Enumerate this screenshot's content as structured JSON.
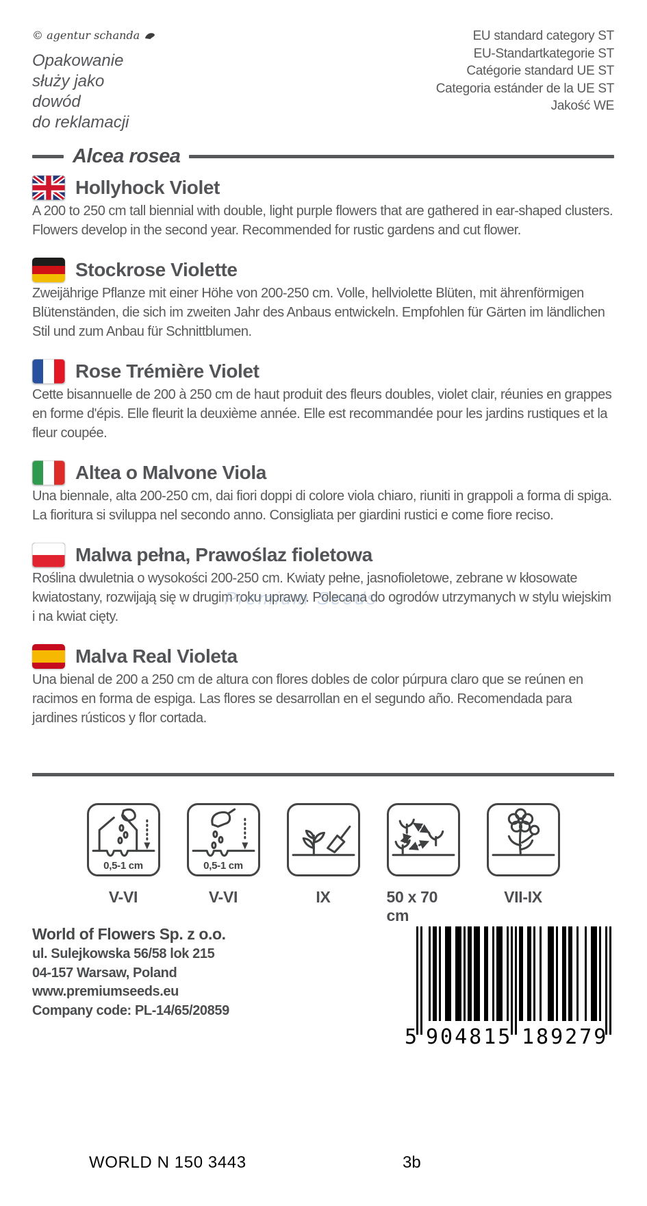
{
  "top": {
    "copyright": "© agentur schanda",
    "packaging_note_lines": [
      "Opakowanie",
      "służy jako",
      "dowód",
      "do reklamacji"
    ],
    "category_lines": [
      "EU standard category ST",
      "EU-Standartkategorie ST",
      "Catégorie standard UE ST",
      "Categoria estánder de la UE ST",
      "Jakość WE"
    ]
  },
  "species": "Alcea rosea",
  "sections": [
    {
      "lang": "en",
      "title": "Hollyhock Violet",
      "body": "A 200 to 250 cm tall biennial with double, light purple flowers that are gathered in ear-shaped clusters. Flowers develop in the second year. Recommended for rustic gardens and cut flower."
    },
    {
      "lang": "de",
      "title": "Stockrose Violette",
      "body": "Zweijährige Pflanze mit einer Höhe von 200-250 cm. Volle, hellviolette Blüten, mit ährenförmigen Blütenständen, die sich im zweiten Jahr des Anbaus entwickeln. Empfohlen für Gärten im ländlichen Stil und zum Anbau für Schnittblumen."
    },
    {
      "lang": "fr",
      "title": "Rose Trémière Violet",
      "body": "Cette bisannuelle de 200 à 250 cm de haut produit des fleurs doubles, violet clair, réunies en grappes en forme d'épis. Elle fleurit la deuxième année. Elle est recommandée pour les jardins rustiques et la fleur coupée."
    },
    {
      "lang": "it",
      "title": "Altea o Malvone Viola",
      "body": "Una biennale, alta 200-250 cm, dai fiori doppi di colore viola chiaro, riuniti in grappoli a forma di spiga. La fioritura si sviluppa nel secondo anno. Consigliata per giardini rustici e come fiore reciso."
    },
    {
      "lang": "pl",
      "title": "Malwa pełna, Prawoślaz fioletowa",
      "body": "Roślina dwuletnia o wysokości 200-250 cm. Kwiaty pełne, jasnofioletowe, zebrane w kłosowate kwiatostany, rozwijają się w drugim roku uprawy. Polecana do ogrodów utrzymanych w stylu wiejskim i na kwiat cięty."
    },
    {
      "lang": "es",
      "title": "Malva Real Violeta",
      "body": "Una bienal de 200 a 250 cm de altura con flores dobles de color púrpura claro que se reúnen en racimos en forma de espiga. Las flores se desarrollan en el segundo año. Recomendada para jardines rústicos y flor cortada."
    }
  ],
  "watermark": "Premium Seeds",
  "icons": [
    {
      "name": "sow-under-cover",
      "depth_label": "0,5-1 cm",
      "caption": "V-VI"
    },
    {
      "name": "sow-direct",
      "depth_label": "0,5-1 cm",
      "caption": "V-VI"
    },
    {
      "name": "transplant",
      "caption": "IX"
    },
    {
      "name": "plant-spacing",
      "caption": "50 x 70 cm"
    },
    {
      "name": "flowering-period",
      "caption": "VII-IX"
    }
  ],
  "address": {
    "company": "World of Flowers Sp. z o.o.",
    "street": "ul. Sulejkowska 56/58 lok 215",
    "city": "04-157 Warsaw, Poland",
    "website": "www.premiumseeds.eu",
    "company_code": "Company code: PL-14/65/20859"
  },
  "barcode": {
    "lead_digit": "5",
    "group1": "904815",
    "group2": "189279"
  },
  "footer": {
    "code": "WORLD N 150 3443",
    "batch": "3b"
  },
  "colors": {
    "text_gray": "#58595b",
    "divider_gray": "#57585a",
    "barcode_black": "#000000"
  }
}
